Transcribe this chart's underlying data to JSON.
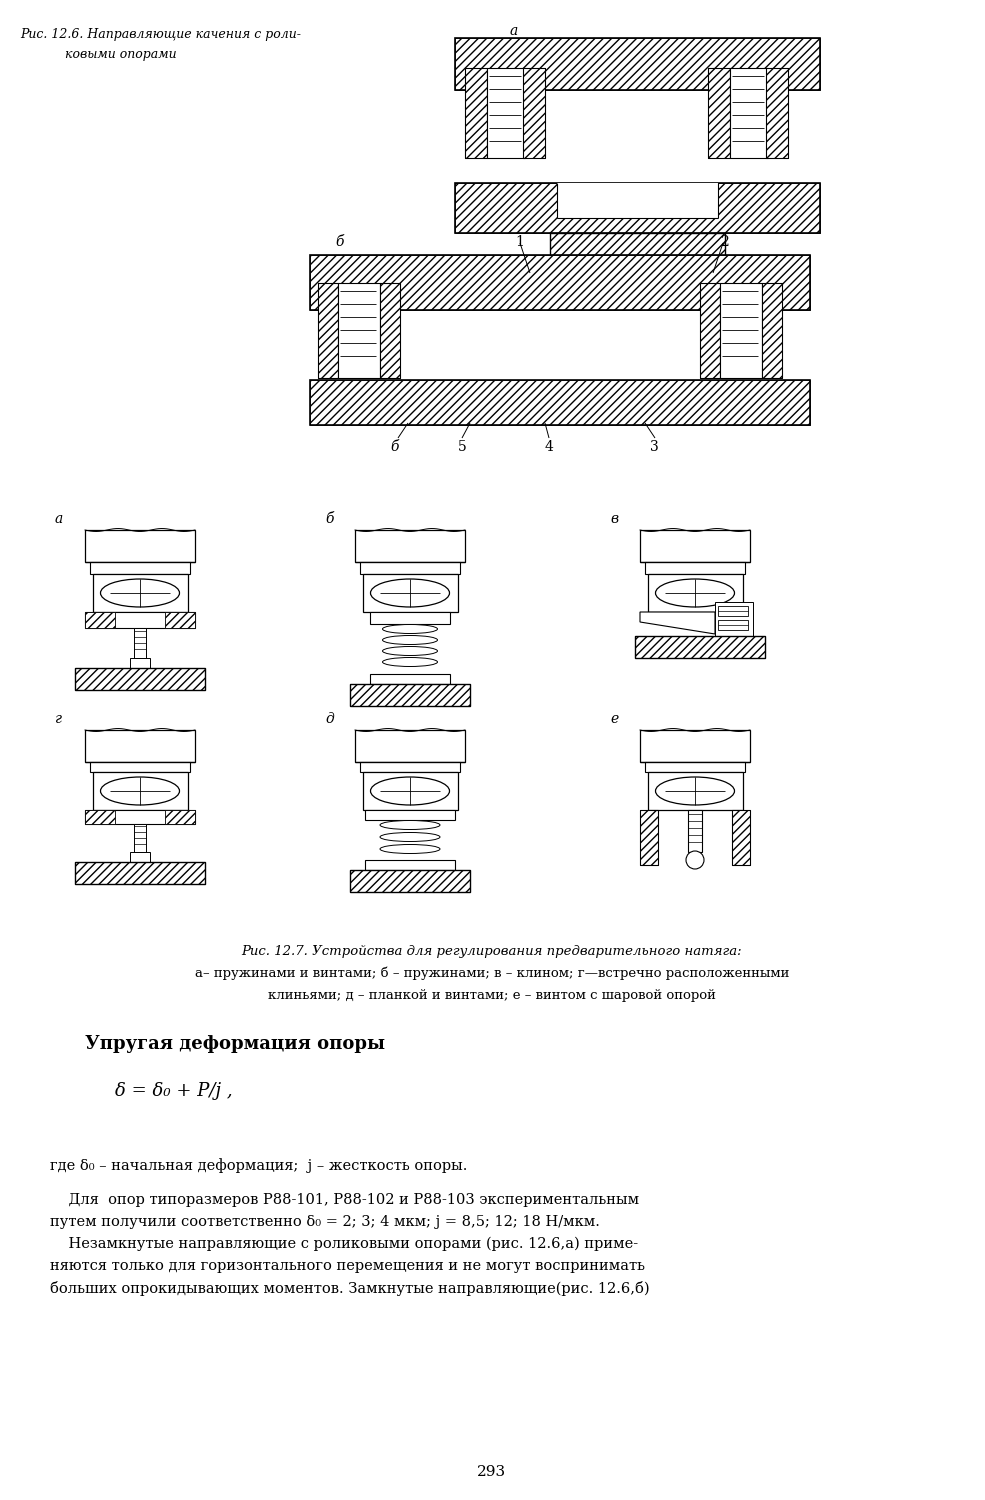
{
  "background_color": "#ffffff",
  "page_width": 9.85,
  "page_height": 15.0,
  "fig_caption_1a": "Рис. 12.6. Направляющие качения с роли-",
  "fig_caption_1b": "ковыми опорами",
  "label_a1": "а",
  "label_b_top": "б",
  "label_1": "1",
  "label_2": "2",
  "label_3": "3",
  "label_4": "4",
  "label_5": "5",
  "label_bb": "б",
  "fig7_title": "Рис. 12.7. Устройства для регулирования предварительного натяга:",
  "fig7_line1": "а– пружинами и винтами; б – пружинами; в – клином; г—встречно расположенными",
  "fig7_line2": "клиньями; д – планкой и винтами; е – винтом с шаровой опорой",
  "section_title": "Упругая деформация опоры",
  "formula": "δ = δ₀ + P/j ,",
  "text_gde": "где δ₀ – начальная деформация;  j – жесткость опоры.",
  "text_p1a": "    Для  опор типоразмеров Р88-101, Р88-102 и Р88-103 экспериментальным",
  "text_p1b": "путем получили соответственно δ₀ = 2; 3; 4 мкм; j = 8,5; 12; 18 Н/мкм.",
  "text_p2a": "    Незамкнутые направляющие с роликовыми опорами (рис. 12.6,а) приме-",
  "text_p2b": "няются только для горизонтального перемещения и не могут воспринимать",
  "text_p2c": "больших опрокидывающих моментов. Замкнутые направляющие(рис. 12.6,б)",
  "page_number": "293"
}
